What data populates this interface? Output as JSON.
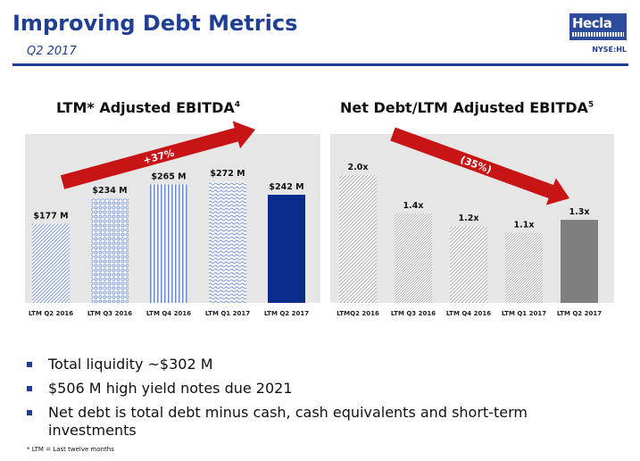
{
  "header": {
    "title": "Improving Debt Metrics",
    "subtitle": "Q2 2017",
    "logo_text": "Hecla",
    "ticker": "NYSE:HL"
  },
  "colors": {
    "brand_blue": "#1f3f94",
    "highlight_blue": "#0a2d8c",
    "arrow_red": "#c81414",
    "gray_bar": "#7f7f7f"
  },
  "chart_data": [
    {
      "type": "bar",
      "title": "LTM* Adjusted EBITDA",
      "title_sup": "4",
      "categories": [
        "LTM Q2 2016",
        "LTM Q3 2016",
        "LTM Q4 2016",
        "LTM Q1 2017",
        "LTM Q2 2017"
      ],
      "values": [
        177,
        234,
        265,
        272,
        242
      ],
      "value_labels": [
        "$177 M",
        "$234 M",
        "$265 M",
        "$272 M",
        "$242 M"
      ],
      "ylim": [
        0,
        330
      ],
      "annotation": "+37%",
      "annotation_direction": "up",
      "highlight_last": true
    },
    {
      "type": "bar",
      "title": "Net Debt/LTM Adjusted EBITDA",
      "title_sup": "5",
      "categories": [
        "LTMQ2 2016",
        "LTM Q3 2016",
        "LTM Q4 2016",
        "LTM Q1 2017",
        "LTM Q2 2017"
      ],
      "values": [
        2.0,
        1.4,
        1.2,
        1.1,
        1.3
      ],
      "value_labels": [
        "2.0x",
        "1.4x",
        "1.2x",
        "1.1x",
        "1.3x"
      ],
      "ylim": [
        0,
        2.5
      ],
      "annotation": "(35%)",
      "annotation_direction": "down",
      "highlight_last": true
    }
  ],
  "bullets": [
    "Total liquidity ~$302 M",
    "$506 M high yield notes due 2021",
    "Net debt is total debt minus cash, cash equivalents and short-term investments"
  ],
  "footnote": "* LTM = Last twelve months"
}
